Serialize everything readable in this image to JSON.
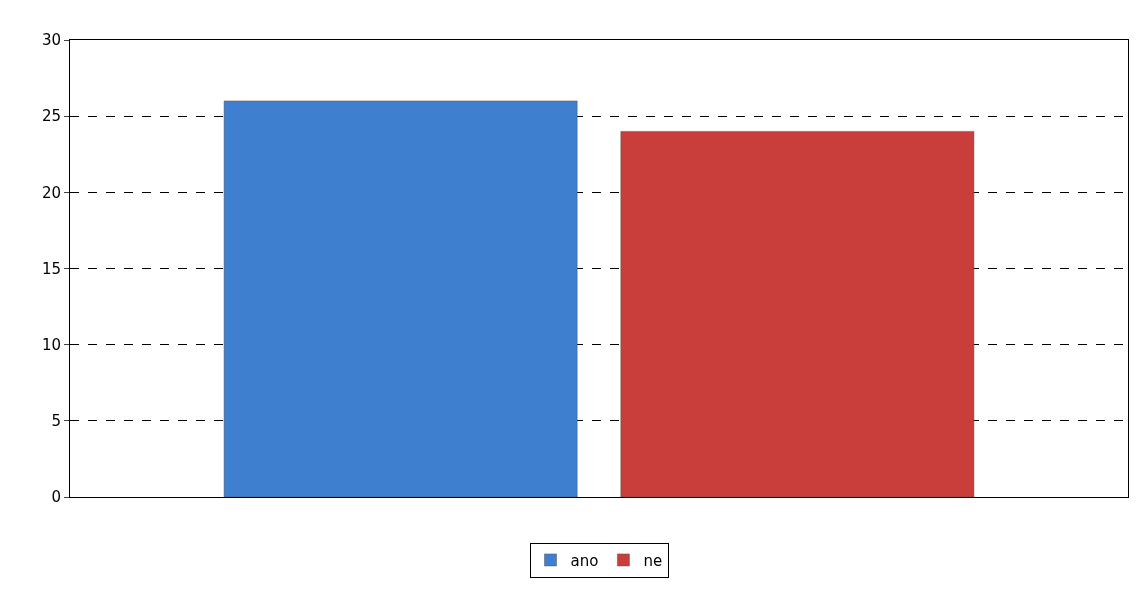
{
  "chart_data": {
    "type": "bar",
    "categories": [
      null
    ],
    "series": [
      {
        "name": "ano",
        "color": "#3f7fd0",
        "values": [
          26
        ]
      },
      {
        "name": "ne",
        "color": "#c93d3b",
        "values": [
          24
        ]
      }
    ],
    "ylim": [
      0,
      30
    ],
    "yticks": [
      0,
      5,
      10,
      15,
      20,
      25,
      30
    ],
    "grid": "y",
    "legend": "bottom"
  }
}
